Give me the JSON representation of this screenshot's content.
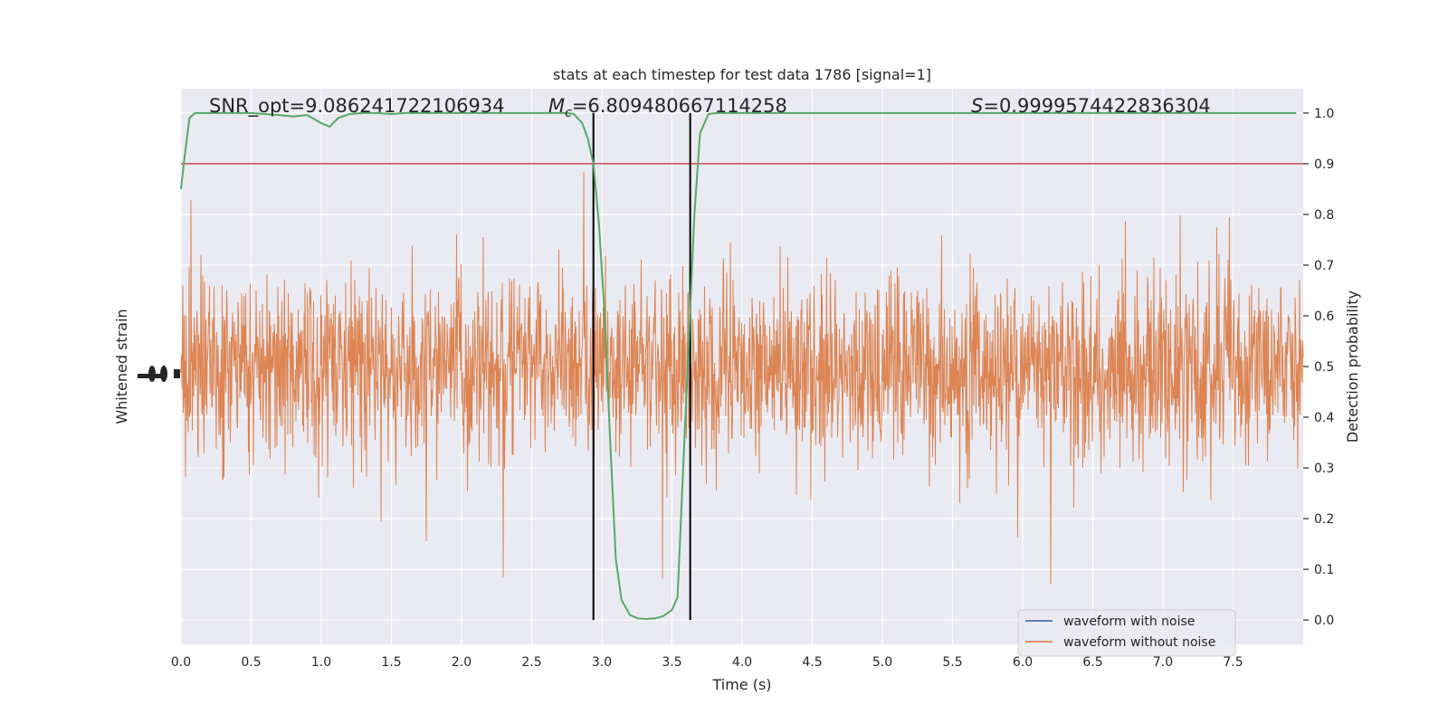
{
  "chart_data": {
    "type": "line",
    "title": "stats at each timestep for test data 1786 [signal=1]",
    "xlabel": "Time (s)",
    "ylabel_left": "Whitened strain",
    "ylabel_right": "Detection probability",
    "xlim": [
      0.0,
      8.0
    ],
    "ylim_right": [
      -0.048,
      1.048
    ],
    "x_ticks": [
      "0.0",
      "0.5",
      "1.0",
      "1.5",
      "2.0",
      "2.5",
      "3.0",
      "3.5",
      "4.0",
      "4.5",
      "5.0",
      "5.5",
      "6.0",
      "6.5",
      "7.0",
      "7.5"
    ],
    "x_tick_values": [
      0.0,
      0.5,
      1.0,
      1.5,
      2.0,
      2.5,
      3.0,
      3.5,
      4.0,
      4.5,
      5.0,
      5.5,
      6.0,
      6.5,
      7.0,
      7.5
    ],
    "y_right_ticks": [
      "0.0",
      "0.1",
      "0.2",
      "0.3",
      "0.4",
      "0.5",
      "0.6",
      "0.7",
      "0.8",
      "0.9",
      "1.0"
    ],
    "y_right_tick_values": [
      0.0,
      0.1,
      0.2,
      0.3,
      0.4,
      0.5,
      0.6,
      0.7,
      0.8,
      0.9,
      1.0
    ],
    "grid": true,
    "legend_position": "lower-right",
    "annotations": {
      "snr": "SNR_opt=9.086241722106934",
      "mc_symbol": "M",
      "mc_sub": "c",
      "mc_value": "=6.809480667114258",
      "s_symbol": "S",
      "s_value": "=0.9999574422836304"
    },
    "threshold": 0.9,
    "vlines": [
      2.94,
      3.63
    ],
    "series": [
      {
        "name": "waveform with noise",
        "color": "#4c72b0"
      },
      {
        "name": "waveform without noise",
        "color": "#dd8452"
      },
      {
        "color": "#55a868",
        "x": [
          0.0,
          0.02,
          0.06,
          0.1,
          0.2,
          0.3,
          0.4,
          0.5,
          0.6,
          0.7,
          0.8,
          0.9,
          1.0,
          1.06,
          1.12,
          1.2,
          1.3,
          1.4,
          1.5,
          1.6,
          1.7,
          1.8,
          1.9,
          2.0,
          2.1,
          2.2,
          2.3,
          2.4,
          2.5,
          2.6,
          2.7,
          2.75,
          2.8,
          2.86,
          2.9,
          2.94,
          2.98,
          3.02,
          3.06,
          3.1,
          3.14,
          3.2,
          3.26,
          3.32,
          3.38,
          3.44,
          3.5,
          3.54,
          3.58,
          3.62,
          3.66,
          3.7,
          3.76,
          3.82,
          3.9,
          4.0,
          4.5,
          5.0,
          5.5,
          6.0,
          6.5,
          7.0,
          7.5,
          7.95
        ],
        "y": [
          0.85,
          0.9,
          0.99,
          1.0,
          1.0,
          1.0,
          1.0,
          1.0,
          0.998,
          0.996,
          0.993,
          0.996,
          0.98,
          0.973,
          0.99,
          0.998,
          1.0,
          1.0,
          0.998,
          1.0,
          1.0,
          1.0,
          1.0,
          1.0,
          1.0,
          1.0,
          1.0,
          1.0,
          1.0,
          1.0,
          1.0,
          1.0,
          0.998,
          0.98,
          0.95,
          0.9,
          0.78,
          0.6,
          0.35,
          0.12,
          0.04,
          0.01,
          0.003,
          0.002,
          0.003,
          0.008,
          0.02,
          0.045,
          0.3,
          0.55,
          0.8,
          0.96,
          0.998,
          1.0,
          1.0,
          1.0,
          1.0,
          1.0,
          1.0,
          1.0,
          1.0,
          1.0,
          1.0,
          1.0
        ]
      }
    ]
  }
}
